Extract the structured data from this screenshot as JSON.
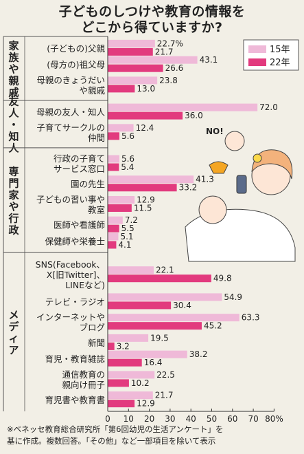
{
  "title_line1": "子どものしつけや教育の情報を",
  "title_line2": "どこから得ていますか?",
  "note_line1": "※ベネッセ教育総合研究所「第6回幼児の生活アンケート」を",
  "note_line2": "基に作成。複数回答。「その他」など一部項目を除いて表示",
  "colors": {
    "s15": "#efb9d8",
    "s22": "#e23a7e",
    "bg": "#f2efe6"
  },
  "chart_data": {
    "type": "bar",
    "orientation": "horizontal",
    "xlim": [
      0,
      80
    ],
    "xticks": [
      "0",
      "10",
      "20",
      "30",
      "40",
      "50",
      "60",
      "70",
      "80%"
    ],
    "legend": {
      "position": "top-right",
      "entries": [
        "15年",
        "22年"
      ]
    },
    "series": [
      {
        "name": "15年"
      },
      {
        "name": "22年"
      }
    ],
    "groups": [
      {
        "label": [
          "家",
          "族",
          "や",
          "親",
          "戚"
        ],
        "categories": [
          {
            "label": [
              "(子どもの)父親"
            ],
            "v15": 22.7,
            "v22": 21.7,
            "l15": "22.7%",
            "l22": "21.7"
          },
          {
            "label": [
              "(母方の)祖父母"
            ],
            "v15": 43.1,
            "v22": 26.6,
            "l15": "43.1",
            "l22": "26.6"
          },
          {
            "label": [
              "母親のきょうだい",
              "や親戚"
            ],
            "v15": 23.8,
            "v22": 13.0,
            "l15": "23.8",
            "l22": "13.0"
          }
        ]
      },
      {
        "label": [
          "友",
          "人",
          "・",
          "知",
          "人"
        ],
        "categories": [
          {
            "label": [
              "母親の友人・知人"
            ],
            "v15": 72.0,
            "v22": 36.0,
            "l15": "72.0",
            "l22": "36.0"
          },
          {
            "label": [
              "子育てサークルの",
              "仲間"
            ],
            "v15": 12.4,
            "v22": 5.6,
            "l15": "12.4",
            "l22": "5.6"
          }
        ]
      },
      {
        "label": [
          "専",
          "門",
          "家",
          "や",
          "行",
          "政"
        ],
        "categories": [
          {
            "label": [
              "行政の子育て",
              "サービス窓口"
            ],
            "v15": 5.6,
            "v22": 5.4,
            "l15": "5.6",
            "l22": "5.4"
          },
          {
            "label": [
              "園の先生"
            ],
            "v15": 41.3,
            "v22": 33.2,
            "l15": "41.3",
            "l22": "33.2"
          },
          {
            "label": [
              "子どもの習い事や",
              "教室"
            ],
            "v15": 12.9,
            "v22": 11.5,
            "l15": "12.9",
            "l22": "11.5"
          },
          {
            "label": [
              "医師や看護師"
            ],
            "v15": 7.2,
            "v22": 5.5,
            "l15": "7.2",
            "l22": "5.5"
          },
          {
            "label": [
              "保健師や栄養士"
            ],
            "v15": 5.1,
            "v22": 4.1,
            "l15": "5.1",
            "l22": "4.1"
          }
        ]
      },
      {
        "label": [
          "メ",
          "デ",
          "ィ",
          "ア"
        ],
        "categories": [
          {
            "label": [
              "SNS(Facebook、",
              "X[旧Twitter]、",
              "LINEなど)"
            ],
            "v15": 22.1,
            "v22": 49.8,
            "l15": "22.1",
            "l22": "49.8"
          },
          {
            "label": [
              "テレビ・ラジオ"
            ],
            "v15": 54.9,
            "v22": 30.4,
            "l15": "54.9",
            "l22": "30.4"
          },
          {
            "label": [
              "インターネットや",
              "ブログ"
            ],
            "v15": 63.3,
            "v22": 45.2,
            "l15": "63.3",
            "l22": "45.2"
          },
          {
            "label": [
              "新聞"
            ],
            "v15": 19.5,
            "v22": 3.2,
            "l15": "19.5",
            "l22": "3.2"
          },
          {
            "label": [
              "育児・教育雑誌"
            ],
            "v15": 38.2,
            "v22": 16.4,
            "l15": "38.2",
            "l22": "16.4"
          },
          {
            "label": [
              "通信教育の",
              "親向け冊子"
            ],
            "v15": 22.5,
            "v22": 10.2,
            "l15": "22.5",
            "l22": "10.2"
          },
          {
            "label": [
              "育児書や教育書"
            ],
            "v15": 21.7,
            "v22": 12.9,
            "l15": "21.7",
            "l22": "12.9"
          }
        ]
      }
    ]
  }
}
